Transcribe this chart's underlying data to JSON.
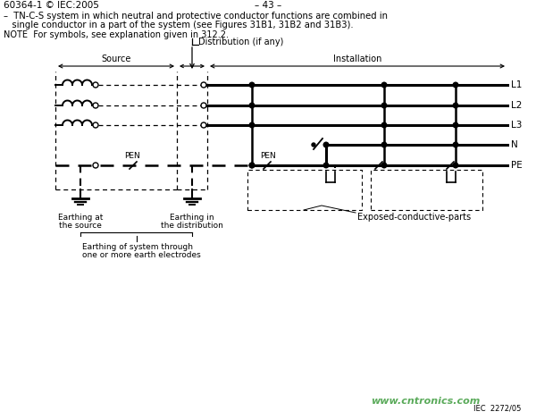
{
  "header_left": "60364-1 © IEC:2005",
  "header_center": "– 43 –",
  "desc_line1": "–  TN-C-S system in which neutral and protective conductor functions are combined in",
  "desc_line2": "   single conductor in a part of the system (see Figures 31B1, 31B2 and 31B3).",
  "note_line": "NOTE  For symbols, see explanation given in 312.2.",
  "bg_color": "#ffffff",
  "line_color": "#000000",
  "watermark_color": "#5aaa5a",
  "watermark": "www.cntronics.com",
  "iec_ref": "IEC  2272/05"
}
